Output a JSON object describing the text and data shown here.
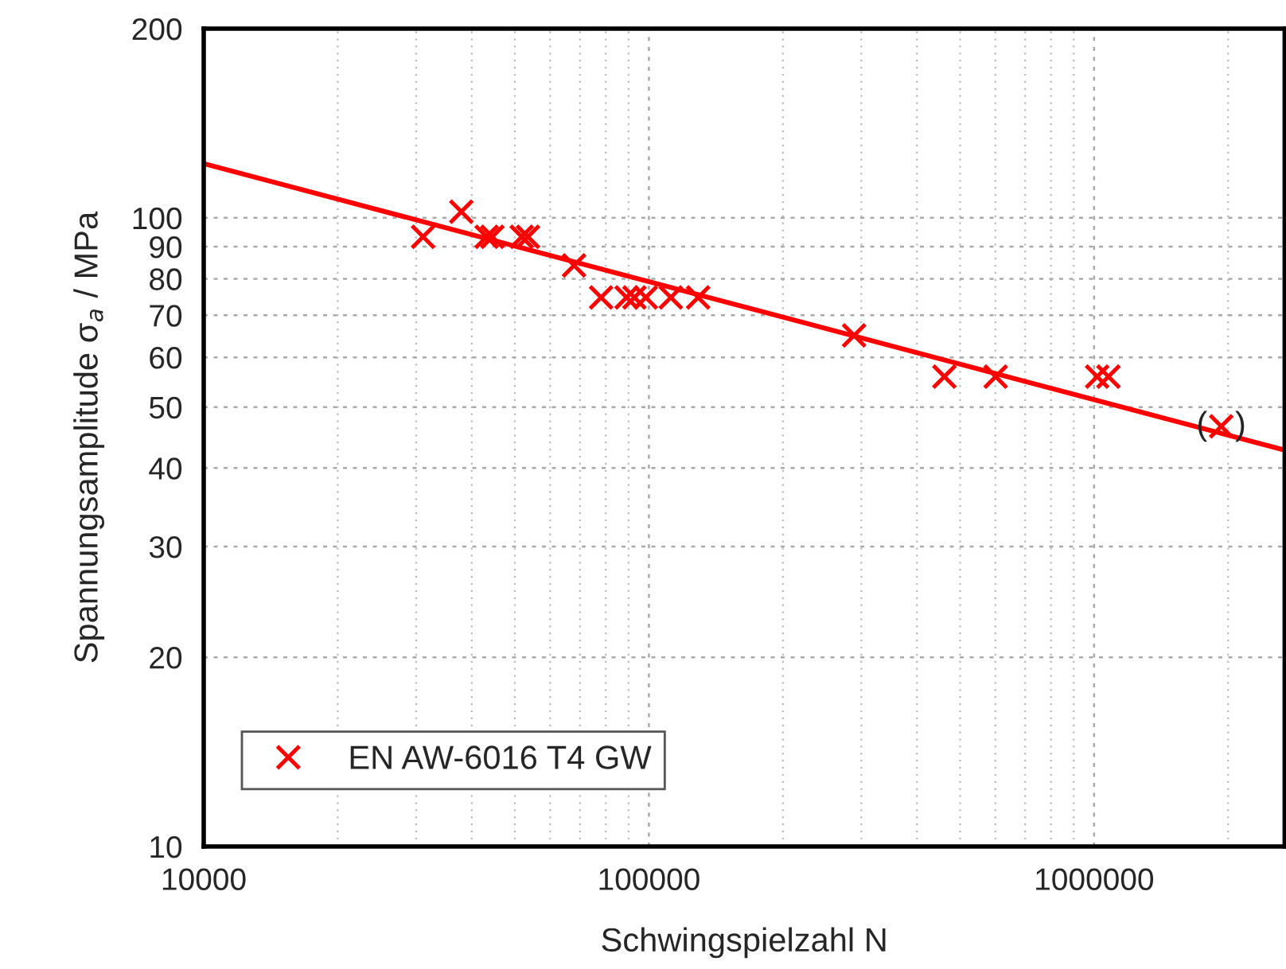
{
  "chart_data": {
    "type": "scatter",
    "xlabel": "Schwingspielzahl N",
    "ylabel": "Spannungsamplitude σ$_{a}$ / MPa",
    "series": [
      {
        "name": "EN AW-6016 T4 GW",
        "color": "#ff0000",
        "marker": "cross",
        "x": [
          31100,
          37900,
          43200,
          44500,
          51800,
          53500,
          67900,
          78100,
          89100,
          92800,
          98400,
          112000,
          129000,
          289000,
          461000,
          601000,
          1016000,
          1077000,
          1930000
        ],
        "values": [
          93.3,
          102.3,
          93.3,
          93.3,
          93.3,
          93.3,
          84,
          74.7,
          74.7,
          74.7,
          74.7,
          74.7,
          74.7,
          65,
          55.9,
          55.9,
          55.9,
          55.9,
          46.6
        ]
      },
      {
        "type": "line",
        "color": "#ff0000",
        "marker": "none",
        "line_style": "solid",
        "x": [
          10000,
          2680000
        ],
        "values": [
          122,
          42.7
        ]
      }
    ],
    "annotations": [
      {
        "text": "(   )",
        "x": 1930000,
        "y": 46.6
      }
    ],
    "log": "xy",
    "xlim": [
      10000,
      2680000
    ],
    "ylim": [
      10,
      200
    ],
    "xticks": [
      10000,
      100000,
      1000000
    ],
    "yticks": [
      10,
      20,
      30,
      40,
      50,
      60,
      70,
      80,
      90,
      100,
      200
    ],
    "grid": true,
    "legend": "bottom left"
  }
}
